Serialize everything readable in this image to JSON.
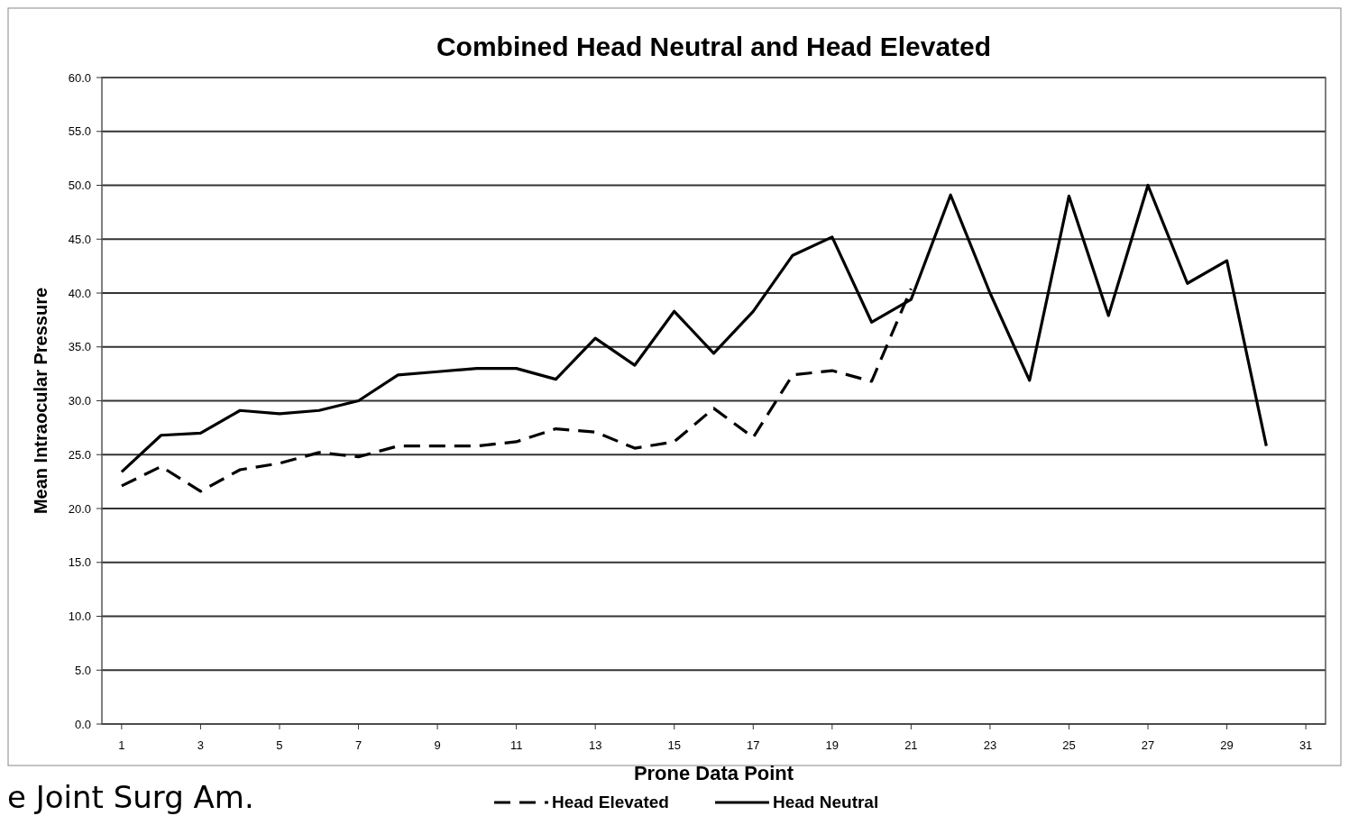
{
  "chart_data": {
    "type": "line",
    "title": "Combined Head Neutral and Head Elevated",
    "xlabel": "Prone Data Point",
    "ylabel": "Mean Intraocular Pressure",
    "x": [
      1,
      2,
      3,
      4,
      5,
      6,
      7,
      8,
      9,
      10,
      11,
      12,
      13,
      14,
      15,
      16,
      17,
      18,
      19,
      20,
      21,
      22,
      23,
      24,
      25,
      26,
      27,
      28,
      29,
      30
    ],
    "xlim": [
      0.5,
      31.5
    ],
    "xticks": [
      1,
      3,
      5,
      7,
      9,
      11,
      13,
      15,
      17,
      19,
      21,
      23,
      25,
      27,
      29,
      31
    ],
    "ylim": [
      0,
      60
    ],
    "yticks": [
      {
        "value": 0,
        "label": "0.0"
      },
      {
        "value": 5,
        "label": "5.0"
      },
      {
        "value": 10,
        "label": "10.0"
      },
      {
        "value": 15,
        "label": "15.0"
      },
      {
        "value": 20,
        "label": "20.0"
      },
      {
        "value": 25,
        "label": "25.0"
      },
      {
        "value": 30,
        "label": "30.0"
      },
      {
        "value": 35,
        "label": "35.0"
      },
      {
        "value": 40,
        "label": "40.0"
      },
      {
        "value": 45,
        "label": "45.0"
      },
      {
        "value": 50,
        "label": "50.0"
      },
      {
        "value": 55,
        "label": "55.0"
      },
      {
        "value": 60,
        "label": "60.0"
      }
    ],
    "grid": "y",
    "legend": "bottom",
    "marker": "none",
    "series": [
      {
        "name": "Head Elevated",
        "color": "#000000",
        "line_style": "dashed",
        "values": [
          22.1,
          23.9,
          21.6,
          23.6,
          24.2,
          25.2,
          24.8,
          25.8,
          25.8,
          25.8,
          26.2,
          27.4,
          27.1,
          25.6,
          26.2,
          29.3,
          26.6,
          32.4,
          32.8,
          31.8,
          40.4,
          null,
          null,
          null,
          null,
          null,
          null,
          null,
          null,
          null
        ]
      },
      {
        "name": "Head Neutral",
        "color": "#000000",
        "line_style": "solid",
        "values": [
          23.4,
          26.8,
          27.0,
          29.1,
          28.8,
          29.1,
          30.0,
          32.4,
          32.7,
          33.0,
          33.0,
          32.0,
          35.8,
          33.3,
          38.3,
          34.4,
          38.3,
          43.5,
          45.2,
          37.3,
          39.4,
          49.1,
          40.0,
          31.9,
          49.0,
          37.9,
          50.0,
          40.9,
          43.0,
          25.8
        ]
      }
    ],
    "annotations": [
      "e Joint Surg Am."
    ]
  }
}
